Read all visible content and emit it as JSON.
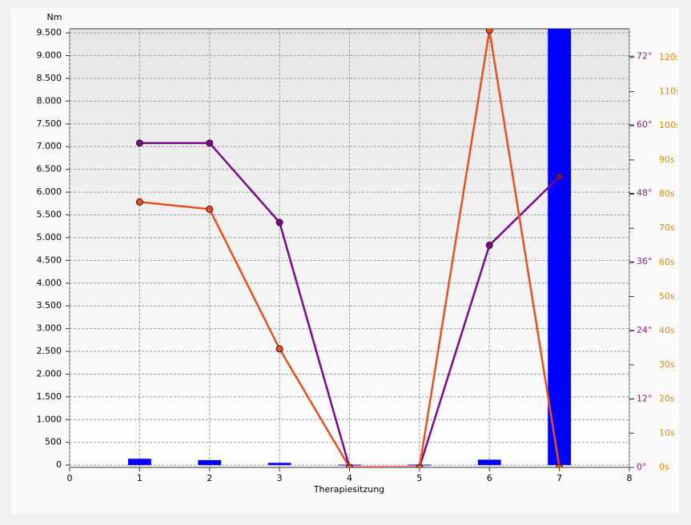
{
  "chart_data": {
    "type": "bar",
    "y_label": "Nm",
    "x_label": "Therapiesitzung",
    "xlim": [
      0,
      8
    ],
    "xticks": [
      0,
      1,
      2,
      3,
      4,
      5,
      6,
      7,
      8
    ],
    "ylim": [
      -50,
      9590
    ],
    "yticks": [
      0,
      500,
      {
        "value": 1000,
        "label": "1.000"
      },
      {
        "value": 1500,
        "label": "1.500"
      },
      {
        "value": 2000,
        "label": "2.000"
      },
      {
        "value": 2500,
        "label": "2.500"
      },
      {
        "value": 3000,
        "label": "3.000"
      },
      {
        "value": 3500,
        "label": "3.500"
      },
      {
        "value": 4000,
        "label": "4.000"
      },
      {
        "value": 4500,
        "label": "4.500"
      },
      {
        "value": 5000,
        "label": "5.000"
      },
      {
        "value": 5500,
        "label": "5.500"
      },
      {
        "value": 6000,
        "label": "6.000"
      },
      {
        "value": 6500,
        "label": "6.500"
      },
      {
        "value": 7000,
        "label": "7.000"
      },
      {
        "value": 7500,
        "label": "7.500"
      },
      {
        "value": 8000,
        "label": "8.000"
      },
      {
        "value": 8500,
        "label": "8.500"
      },
      {
        "value": 9000,
        "label": "9.000"
      },
      {
        "value": 9500,
        "label": "9.500"
      }
    ],
    "y2lim": [
      0,
      76.8
    ],
    "y2ticks": [
      {
        "value": 0,
        "label": "0°"
      },
      {
        "value": 12,
        "label": "12°"
      },
      {
        "value": 24,
        "label": "24°"
      },
      {
        "value": 36,
        "label": "36°"
      },
      {
        "value": 48,
        "label": "48°"
      },
      {
        "value": 60,
        "label": "60°"
      },
      {
        "value": 72,
        "label": "72°"
      }
    ],
    "y2color": "#8b1a8b",
    "y3lim": [
      0,
      128.4
    ],
    "y3ticks": [
      {
        "value": 0,
        "label": "0s"
      },
      {
        "value": 10,
        "label": "10s"
      },
      {
        "value": 20,
        "label": "20s"
      },
      {
        "value": 30,
        "label": "30s"
      },
      {
        "value": 40,
        "label": "40s"
      },
      {
        "value": 50,
        "label": "50s"
      },
      {
        "value": 60,
        "label": "60s"
      },
      {
        "value": 70,
        "label": "70s"
      },
      {
        "value": 80,
        "label": "80s"
      },
      {
        "value": 90,
        "label": "90s"
      },
      {
        "value": 100,
        "label": "100s"
      },
      {
        "value": 110,
        "label": "110s"
      },
      {
        "value": 120,
        "label": "120s"
      }
    ],
    "y3color": "#e38a00",
    "grid": true,
    "series": [
      {
        "type": "bar",
        "axis": "y",
        "color": "#0000ff",
        "x": [
          1,
          2,
          3,
          4,
          5,
          6,
          7
        ],
        "values": [
          140,
          110,
          50,
          10,
          10,
          120,
          9590
        ]
      },
      {
        "type": "line",
        "axis": "y2",
        "color": "#7a0a8a",
        "x": [
          1,
          2,
          3,
          4,
          5,
          6,
          7
        ],
        "values": [
          56.8,
          56.8,
          42.9,
          0,
          0,
          38.9,
          50.9
        ]
      },
      {
        "type": "line",
        "axis": "y3",
        "color": "#e8501e",
        "x": [
          1,
          2,
          3,
          4,
          5,
          6,
          7
        ],
        "values": [
          77.7,
          75.6,
          34.7,
          0,
          0,
          128,
          0
        ]
      }
    ]
  }
}
